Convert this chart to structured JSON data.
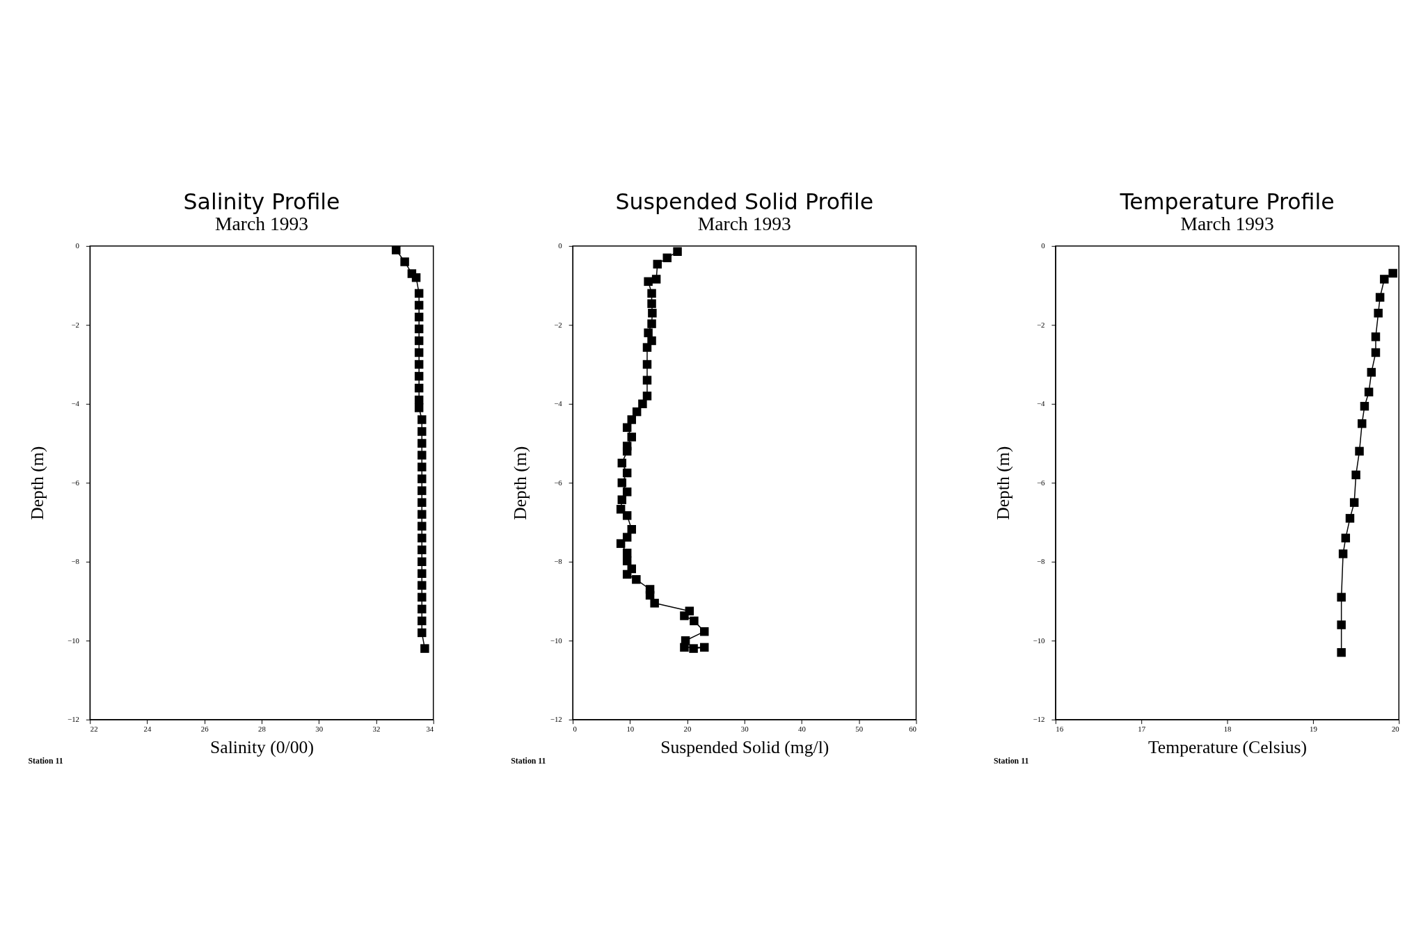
{
  "chart_data": [
    {
      "type": "line",
      "title": "Salinity Profile",
      "subtitle": "March 1993",
      "xlabel": "Salinity (0/00)",
      "ylabel": "Depth (m)",
      "marker": "square",
      "grid": false,
      "xlim": [
        22,
        34
      ],
      "xticks": [
        22,
        24,
        26,
        28,
        30,
        32,
        34
      ],
      "ylim": [
        -12,
        0
      ],
      "yticks": [
        -12,
        -10,
        -8,
        -6,
        -4,
        -2,
        0
      ],
      "annotations": [
        "Station 11"
      ],
      "series": [
        {
          "color": "#000000",
          "x": [
            32.7,
            33.0,
            33.25,
            33.4,
            33.5,
            33.5,
            33.5,
            33.5,
            33.5,
            33.5,
            33.5,
            33.5,
            33.5,
            33.5,
            33.5,
            33.6,
            33.6,
            33.6,
            33.6,
            33.6,
            33.6,
            33.6,
            33.6,
            33.6,
            33.6,
            33.6,
            33.6,
            33.6,
            33.6,
            33.6,
            33.6,
            33.6,
            33.6,
            33.6,
            33.7
          ],
          "values": [
            -0.1,
            -0.4,
            -0.7,
            -0.8,
            -1.2,
            -1.5,
            -1.8,
            -2.1,
            -2.4,
            -2.7,
            -3.0,
            -3.3,
            -3.6,
            -3.9,
            -4.1,
            -4.4,
            -4.7,
            -5.0,
            -5.3,
            -5.6,
            -5.9,
            -6.2,
            -6.5,
            -6.8,
            -7.1,
            -7.4,
            -7.7,
            -8.0,
            -8.3,
            -8.6,
            -8.9,
            -9.2,
            -9.5,
            -9.8,
            -10.2
          ]
        }
      ]
    },
    {
      "type": "line",
      "title": "Suspended Solid Profile",
      "subtitle": "March 1993",
      "xlabel": "Suspended Solid (mg/l)",
      "ylabel": "Depth (m)",
      "marker": "square",
      "grid": false,
      "xlim": [
        0,
        60
      ],
      "xticks": [
        0,
        10,
        20,
        30,
        40,
        50,
        60
      ],
      "ylim": [
        -12,
        0
      ],
      "yticks": [
        -12,
        -10,
        -8,
        -6,
        -4,
        -2,
        0
      ],
      "annotations": [
        "Station 11"
      ],
      "series": [
        {
          "color": "#000000",
          "x": [
            18.3,
            16.5,
            14.8,
            14.6,
            13.2,
            13.8,
            13.8,
            13.9,
            13.8,
            13.2,
            13.8,
            13.0,
            13.0,
            13.0,
            13.0,
            12.2,
            11.2,
            10.3,
            9.5,
            10.3,
            9.5,
            9.5,
            8.6,
            9.5,
            8.6,
            9.5,
            8.6,
            8.4,
            9.5,
            10.3,
            9.5,
            8.4,
            9.5,
            9.5,
            10.3,
            9.5,
            11.1,
            13.5,
            13.5,
            14.3,
            20.4,
            19.5,
            21.2,
            23.0,
            19.7,
            19.5,
            23.0,
            21.1
          ],
          "values": [
            -0.14,
            -0.3,
            -0.46,
            -0.84,
            -0.9,
            -1.2,
            -1.46,
            -1.7,
            -1.97,
            -2.2,
            -2.4,
            -2.57,
            -3.0,
            -3.4,
            -3.8,
            -4.0,
            -4.2,
            -4.4,
            -4.6,
            -4.84,
            -5.07,
            -5.2,
            -5.5,
            -5.75,
            -6.0,
            -6.23,
            -6.43,
            -6.67,
            -6.83,
            -7.18,
            -7.38,
            -7.54,
            -7.78,
            -7.98,
            -8.18,
            -8.32,
            -8.45,
            -8.7,
            -8.85,
            -9.05,
            -9.25,
            -9.37,
            -9.5,
            -9.77,
            -10.0,
            -10.17,
            -10.17,
            -10.2
          ]
        }
      ]
    },
    {
      "type": "line",
      "title": "Temperature Profile",
      "subtitle": "March 1993",
      "xlabel": "Temperature (Celsius)",
      "ylabel": "Depth (m)",
      "marker": "square",
      "grid": false,
      "xlim": [
        16,
        20
      ],
      "xticks": [
        16,
        17,
        18,
        19,
        20
      ],
      "ylim": [
        -12,
        0
      ],
      "yticks": [
        -12,
        -10,
        -8,
        -6,
        -4,
        -2,
        0
      ],
      "annotations": [
        "Station 11"
      ],
      "series": [
        {
          "color": "#000000",
          "x": [
            19.93,
            19.83,
            19.78,
            19.76,
            19.73,
            19.73,
            19.68,
            19.65,
            19.6,
            19.57,
            19.54,
            19.5,
            19.48,
            19.43,
            19.38,
            19.35,
            19.33,
            19.33,
            19.33
          ],
          "values": [
            -0.69,
            -0.84,
            -1.3,
            -1.7,
            -2.3,
            -2.7,
            -3.2,
            -3.7,
            -4.06,
            -4.5,
            -5.2,
            -5.8,
            -6.5,
            -6.9,
            -7.4,
            -7.8,
            -8.9,
            -9.6,
            -10.3
          ]
        }
      ]
    }
  ]
}
